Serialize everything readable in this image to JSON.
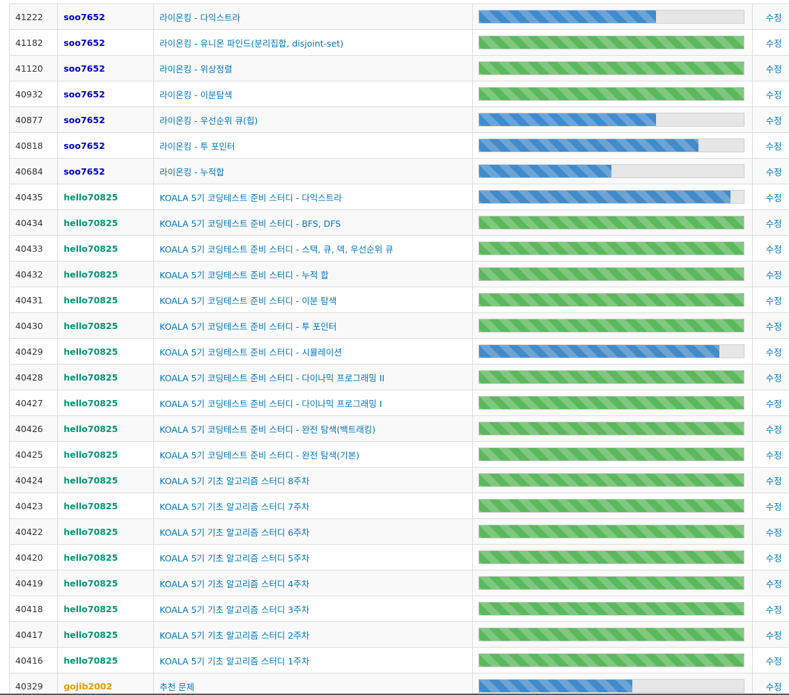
{
  "colors": {
    "user_blue": "#0000cc",
    "user_teal": "#009874",
    "user_orange": "#ec9a00",
    "link": "#0076c0",
    "bar_done": "#5cb85c",
    "bar_partial": "#428bca"
  },
  "rows": [
    {
      "id": "41222",
      "user": "soo7652",
      "user_color": "#0000cc",
      "title": "라이온킹 - 다익스트라",
      "progress": 0.67,
      "edit_label": "수정"
    },
    {
      "id": "41182",
      "user": "soo7652",
      "user_color": "#0000cc",
      "title": "라이온킹 - 유니온 파인드(분리집합, disjoint-set)",
      "progress": 1.0,
      "edit_label": "수정"
    },
    {
      "id": "41120",
      "user": "soo7652",
      "user_color": "#0000cc",
      "title": "라이온킹 - 위상정렬",
      "progress": 1.0,
      "edit_label": "수정"
    },
    {
      "id": "40932",
      "user": "soo7652",
      "user_color": "#0000cc",
      "title": "라이온킹 - 이분탐색",
      "progress": 1.0,
      "edit_label": "수정"
    },
    {
      "id": "40877",
      "user": "soo7652",
      "user_color": "#0000cc",
      "title": "라이온킹 - 우선순위 큐(힙)",
      "progress": 0.67,
      "edit_label": "수정"
    },
    {
      "id": "40818",
      "user": "soo7652",
      "user_color": "#0000cc",
      "title": "라이온킹 - 투 포인터",
      "progress": 0.83,
      "edit_label": "수정"
    },
    {
      "id": "40684",
      "user": "soo7652",
      "user_color": "#0000cc",
      "title": "라이온킹 - 누적합",
      "progress": 0.5,
      "edit_label": "수정"
    },
    {
      "id": "40435",
      "user": "hello70825",
      "user_color": "#009874",
      "title": "KOALA 5기 코딩테스트 준비 스터디 - 다익스트라",
      "progress": 0.95,
      "edit_label": "수정"
    },
    {
      "id": "40434",
      "user": "hello70825",
      "user_color": "#009874",
      "title": "KOALA 5기 코딩테스트 준비 스터디 - BFS, DFS",
      "progress": 1.0,
      "edit_label": "수정"
    },
    {
      "id": "40433",
      "user": "hello70825",
      "user_color": "#009874",
      "title": "KOALA 5기 코딩테스트 준비 스터디 - 스택, 큐, 덱, 우선순위 큐",
      "progress": 1.0,
      "edit_label": "수정"
    },
    {
      "id": "40432",
      "user": "hello70825",
      "user_color": "#009874",
      "title": "KOALA 5기 코딩테스트 준비 스터디 - 누적 합",
      "progress": 1.0,
      "edit_label": "수정"
    },
    {
      "id": "40431",
      "user": "hello70825",
      "user_color": "#009874",
      "title": "KOALA 5기 코딩테스트 준비 스터디 - 이분 탐색",
      "progress": 1.0,
      "edit_label": "수정"
    },
    {
      "id": "40430",
      "user": "hello70825",
      "user_color": "#009874",
      "title": "KOALA 5기 코딩테스트 준비 스터디 - 투 포인터",
      "progress": 1.0,
      "edit_label": "수정"
    },
    {
      "id": "40429",
      "user": "hello70825",
      "user_color": "#009874",
      "title": "KOALA 5기 코딩테스트 준비 스터디 - 시뮬레이션",
      "progress": 0.91,
      "edit_label": "수정"
    },
    {
      "id": "40428",
      "user": "hello70825",
      "user_color": "#009874",
      "title": "KOALA 5기 코딩테스트 준비 스터디 - 다이나믹 프로그래밍 II",
      "progress": 1.0,
      "edit_label": "수정"
    },
    {
      "id": "40427",
      "user": "hello70825",
      "user_color": "#009874",
      "title": "KOALA 5기 코딩테스트 준비 스터디 - 다이나믹 프로그래밍 I",
      "progress": 1.0,
      "edit_label": "수정"
    },
    {
      "id": "40426",
      "user": "hello70825",
      "user_color": "#009874",
      "title": "KOALA 5기 코딩테스트 준비 스터디 - 완전 탐색(백트래킹)",
      "progress": 1.0,
      "edit_label": "수정"
    },
    {
      "id": "40425",
      "user": "hello70825",
      "user_color": "#009874",
      "title": "KOALA 5기 코딩테스트 준비 스터디 - 완전 탐색(기본)",
      "progress": 1.0,
      "edit_label": "수정"
    },
    {
      "id": "40424",
      "user": "hello70825",
      "user_color": "#009874",
      "title": "KOALA 5기 기초 알고리즘 스터디 8주차",
      "progress": 1.0,
      "edit_label": "수정"
    },
    {
      "id": "40423",
      "user": "hello70825",
      "user_color": "#009874",
      "title": "KOALA 5기 기초 알고리즘 스터디 7주차",
      "progress": 1.0,
      "edit_label": "수정"
    },
    {
      "id": "40422",
      "user": "hello70825",
      "user_color": "#009874",
      "title": "KOALA 5기 기초 알고리즘 스터디 6주차",
      "progress": 1.0,
      "edit_label": "수정"
    },
    {
      "id": "40420",
      "user": "hello70825",
      "user_color": "#009874",
      "title": "KOALA 5기 기초 알고리즘 스터디 5주차",
      "progress": 1.0,
      "edit_label": "수정"
    },
    {
      "id": "40419",
      "user": "hello70825",
      "user_color": "#009874",
      "title": "KOALA 5기 기초 알고리즘 스터디 4주차",
      "progress": 1.0,
      "edit_label": "수정"
    },
    {
      "id": "40418",
      "user": "hello70825",
      "user_color": "#009874",
      "title": "KOALA 5기 기초 알고리즘 스터디 3주차",
      "progress": 1.0,
      "edit_label": "수정"
    },
    {
      "id": "40417",
      "user": "hello70825",
      "user_color": "#009874",
      "title": "KOALA 5기 기초 알고리즘 스터디 2주차",
      "progress": 1.0,
      "edit_label": "수정"
    },
    {
      "id": "40416",
      "user": "hello70825",
      "user_color": "#009874",
      "title": "KOALA 5기 기초 알고리즘 스터디 1주차",
      "progress": 1.0,
      "edit_label": "수정"
    },
    {
      "id": "40329",
      "user": "gojib2002",
      "user_color": "#ec9a00",
      "title": "추천 문제",
      "progress": 0.58,
      "edit_label": "수정"
    }
  ]
}
